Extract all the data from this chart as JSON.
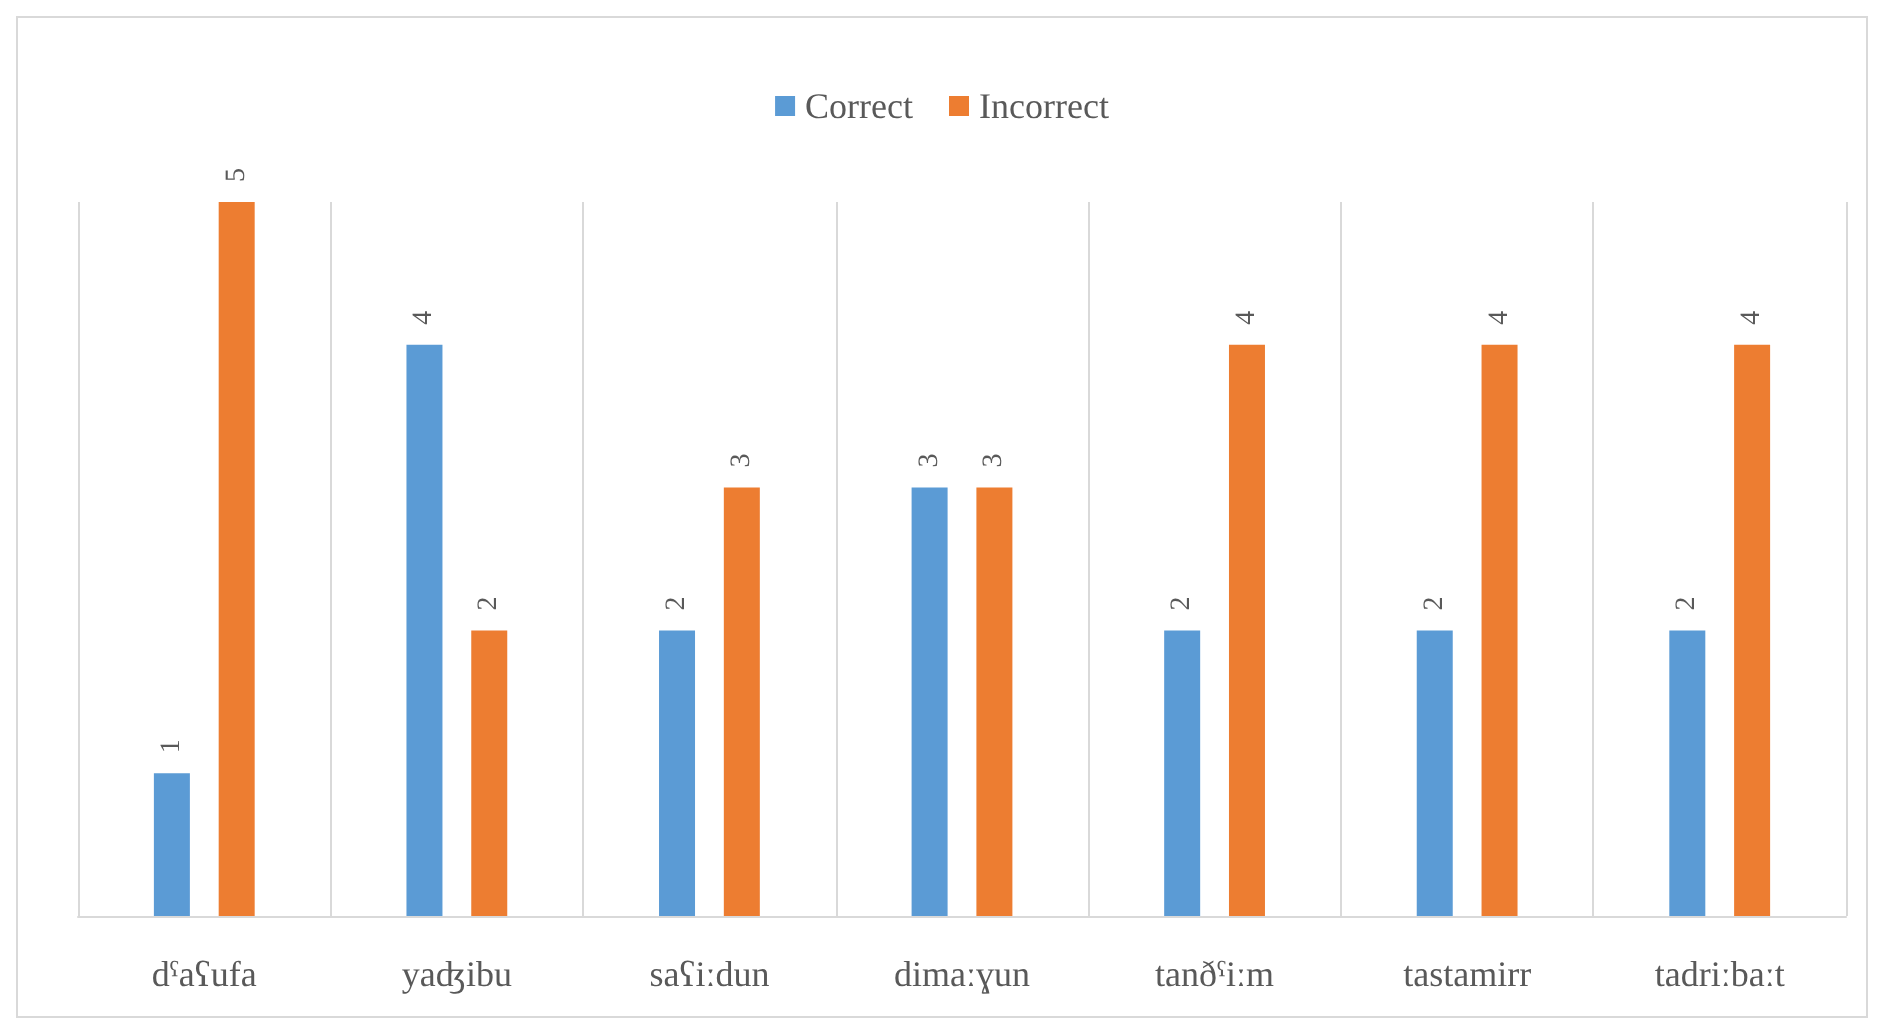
{
  "chart_data": {
    "type": "bar",
    "categories": [
      "dˁaʕufa",
      "yaʤibu",
      "saʕiːdun",
      "dimaːɣun",
      "tanðˁiːm",
      "tastamirr",
      "tadriːbaːt"
    ],
    "series": [
      {
        "name": "Correct",
        "color": "#5b9bd5",
        "values": [
          1,
          4,
          2,
          3,
          2,
          2,
          2
        ]
      },
      {
        "name": "Incorrect",
        "color": "#ed7d31",
        "values": [
          5,
          2,
          3,
          3,
          4,
          4,
          4
        ]
      }
    ],
    "data_labels": true,
    "grid": "x",
    "legend": "top"
  }
}
